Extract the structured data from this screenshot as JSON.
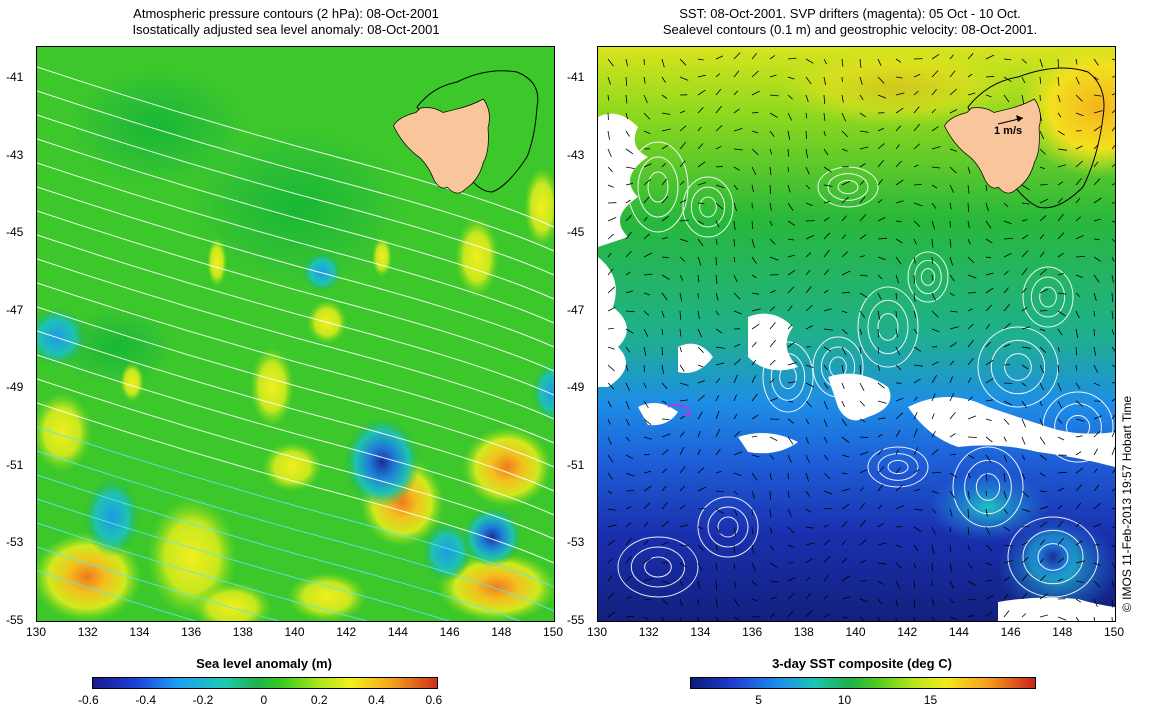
{
  "left_map": {
    "title_line1": "Atmospheric pressure contours (2 hPa): 08-Oct-2001",
    "title_line2": "Isostatically adjusted sea level anomaly: 08-Oct-2001",
    "colorbar_label": "Sea level anomaly (m)",
    "colorbar_ticks": [
      "-0.6",
      "-0.4",
      "-0.2",
      "0",
      "0.2",
      "0.4",
      "0.6"
    ],
    "colorbar_range": [
      -0.6,
      0.6
    ]
  },
  "right_map": {
    "title_line1": "SST: 08-Oct-2001. SVP drifters (magenta): 05 Oct - 10 Oct.",
    "title_line2": "Sealevel contours (0.1 m) and geostrophic velocity: 08-Oct-2001.",
    "colorbar_label": "3-day SST composite (deg C)",
    "colorbar_ticks": [
      "5",
      "10",
      "15"
    ],
    "colorbar_range": [
      1,
      21
    ],
    "velocity_scale_label": "1 m/s"
  },
  "axes": {
    "lon_ticks": [
      "130",
      "132",
      "134",
      "136",
      "138",
      "140",
      "142",
      "144",
      "146",
      "148",
      "150"
    ],
    "lat_ticks": [
      "-41",
      "-43",
      "-45",
      "-47",
      "-49",
      "-51",
      "-53",
      "-55"
    ],
    "lon_range": [
      130,
      150
    ],
    "lat_range": [
      -55,
      -40.2
    ]
  },
  "colors": {
    "land": "#f9c59a",
    "contour": "#ffffff",
    "contour_cyan": "#5ee6f0",
    "drifter": "#e020e0"
  },
  "credit": "© IMOS 11-Feb-2013 19:57 Hobart Time"
}
